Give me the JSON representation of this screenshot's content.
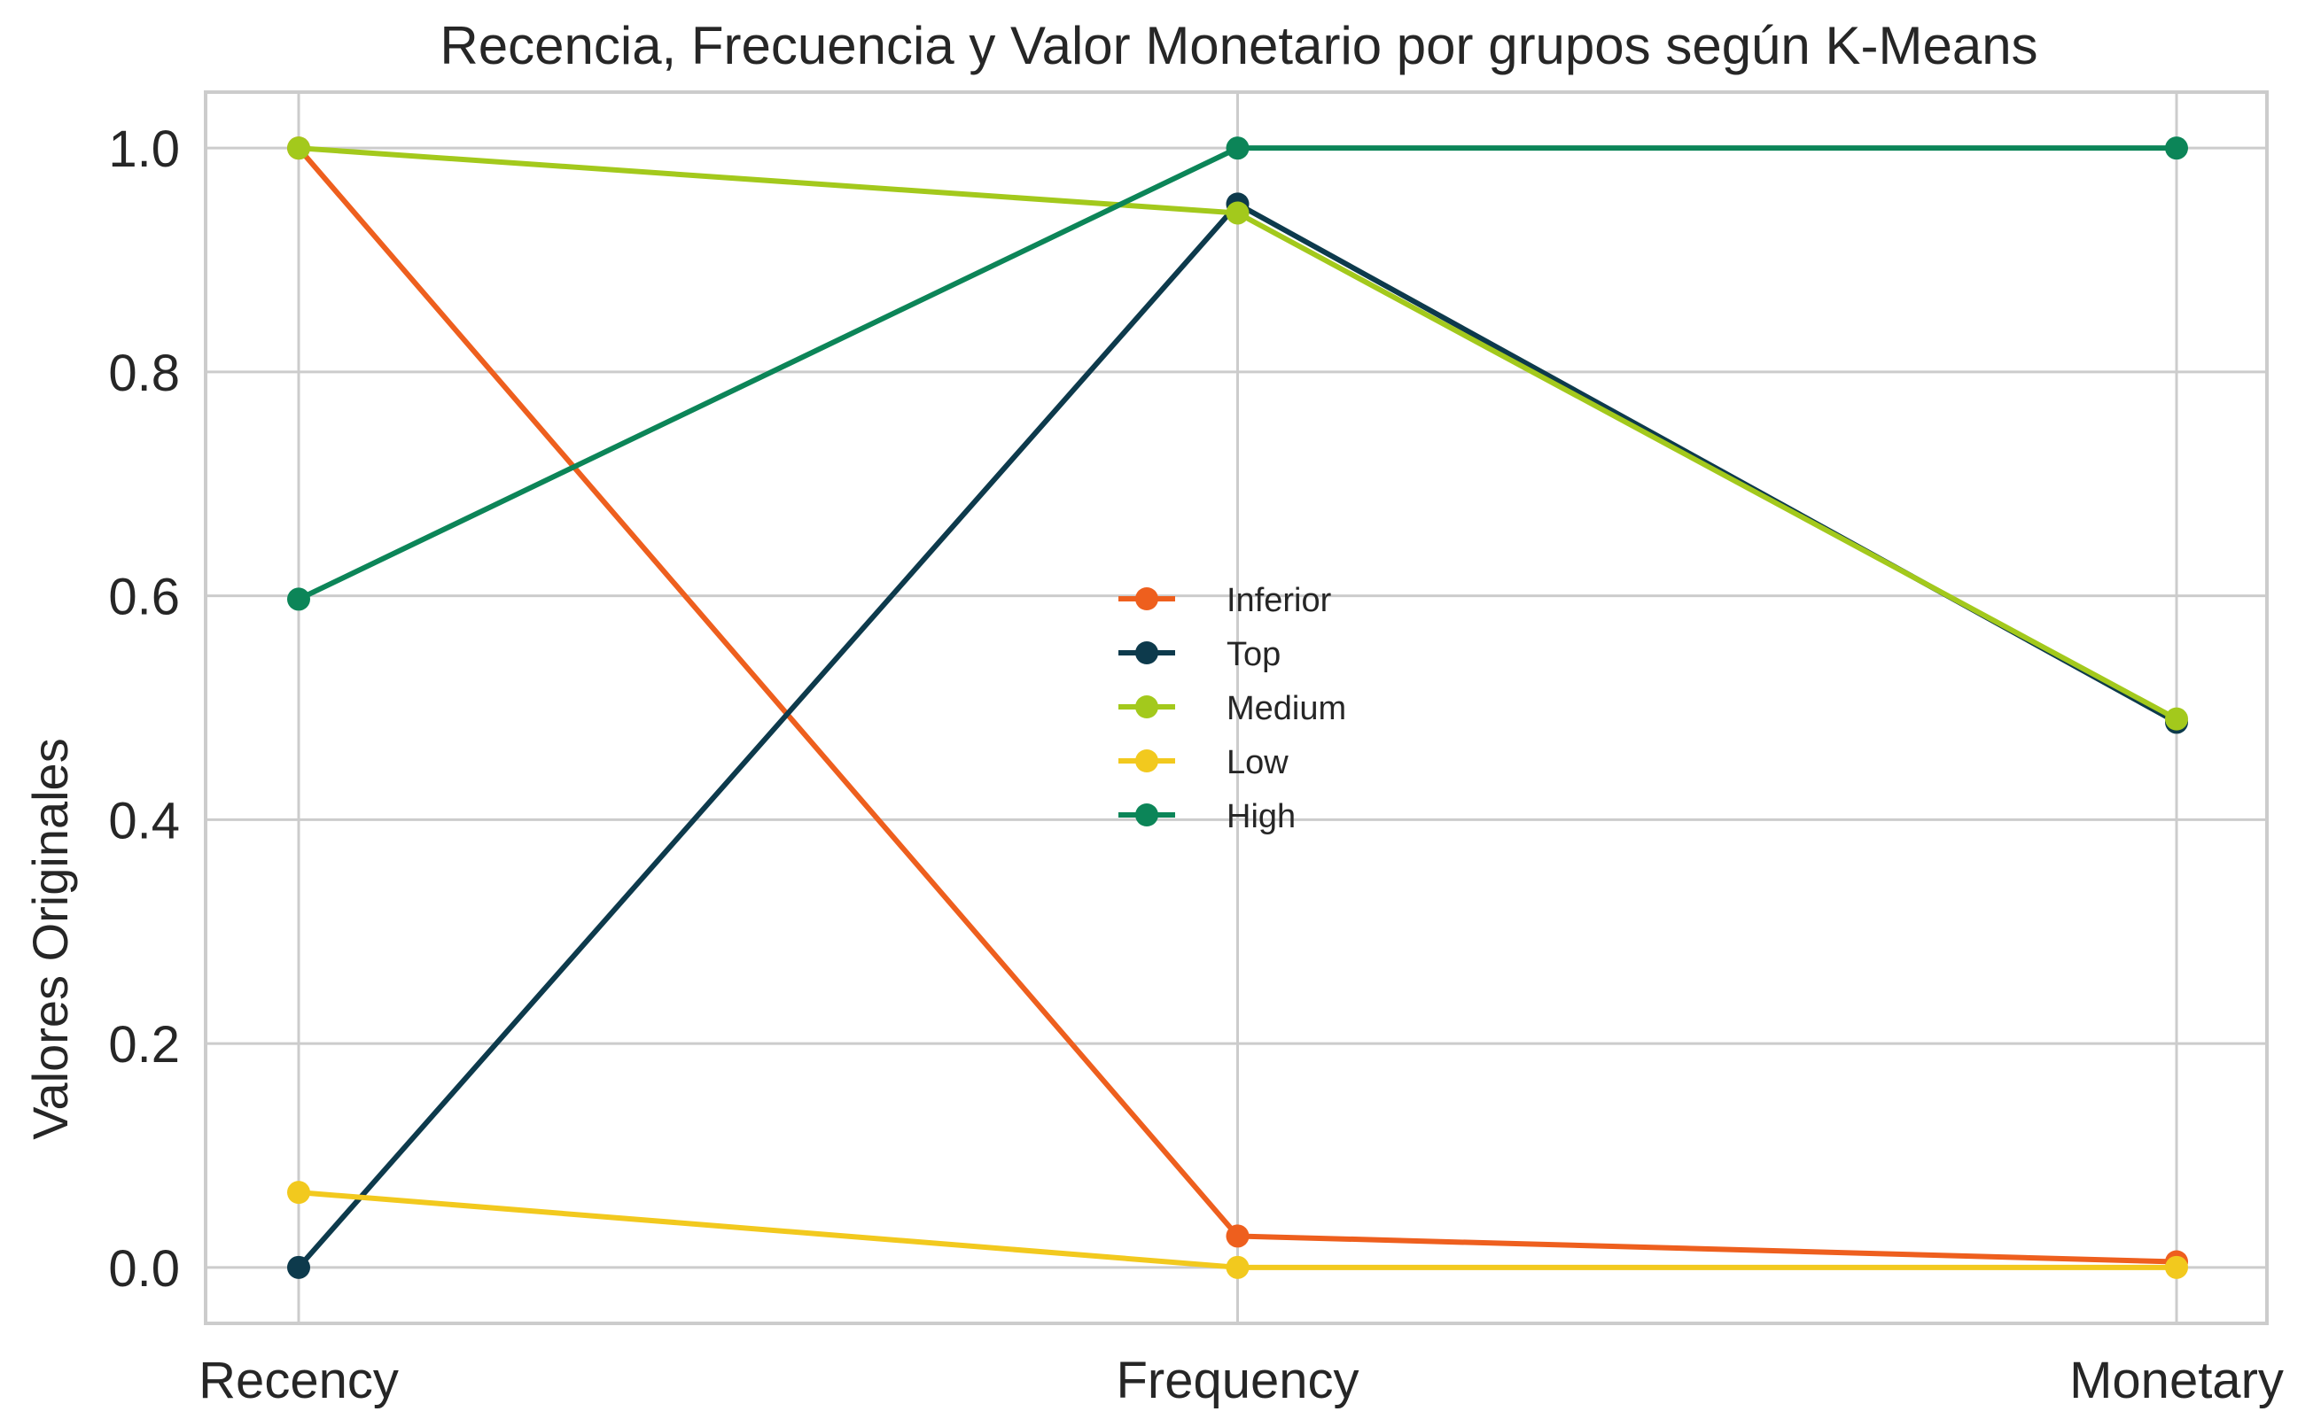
{
  "chart_data": {
    "type": "line",
    "title": "Recencia, Frecuencia y Valor Monetario por grupos según K-Means",
    "xlabel": "",
    "ylabel": "Valores Originales",
    "categories": [
      "Recency",
      "Frequency",
      "Monetary"
    ],
    "ylim": [
      -0.05,
      1.05
    ],
    "yticks": [
      0.0,
      0.2,
      0.4,
      0.6,
      0.8,
      1.0
    ],
    "ytick_labels": [
      "0.0",
      "0.2",
      "0.4",
      "0.6",
      "0.8",
      "1.0"
    ],
    "grid": true,
    "legend_position": "center",
    "series": [
      {
        "name": "Inferior",
        "color": "#ee5f1e",
        "values": [
          1.0,
          0.028,
          0.005
        ]
      },
      {
        "name": "Top",
        "color": "#0d3a4c",
        "values": [
          0.0,
          0.95,
          0.487
        ]
      },
      {
        "name": "Medium",
        "color": "#a3c91c",
        "values": [
          1.0,
          0.942,
          0.49
        ]
      },
      {
        "name": "Low",
        "color": "#f2c91e",
        "values": [
          0.067,
          0.0,
          0.0
        ]
      },
      {
        "name": "High",
        "color": "#0c8558",
        "values": [
          0.597,
          1.0,
          1.0
        ]
      }
    ]
  }
}
